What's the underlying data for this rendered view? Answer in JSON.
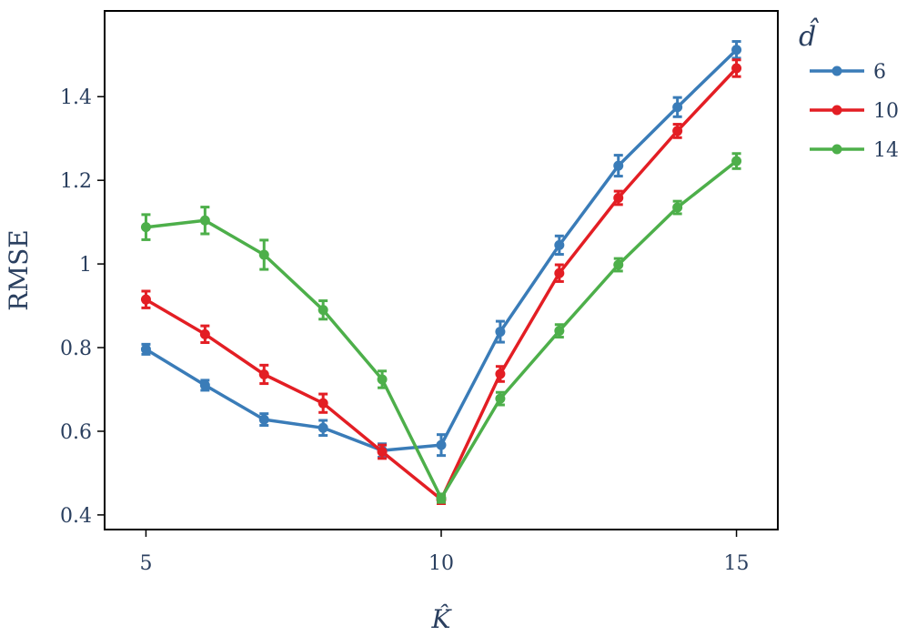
{
  "chart_data": {
    "type": "line",
    "xlabel": "K̂",
    "ylabel": "RMSE",
    "xlim": [
      4.3,
      15.7
    ],
    "ylim": [
      0.365,
      1.605
    ],
    "xticks": [
      5,
      10,
      15
    ],
    "yticks": [
      0.4,
      0.6,
      0.8,
      1.0,
      1.2,
      1.4
    ],
    "ytick_labels": [
      "0.4",
      "0.6",
      "0.8",
      "1",
      "1.2",
      "1.4"
    ],
    "xtick_labels": [
      "5",
      "10",
      "15"
    ],
    "grid": false,
    "legend": {
      "title": "d̂",
      "placement": "right"
    },
    "x": [
      5,
      6,
      7,
      8,
      9,
      10,
      11,
      12,
      13,
      14,
      15
    ],
    "series": [
      {
        "name": "6",
        "color": "#3a7cb8",
        "values": [
          0.796,
          0.71,
          0.628,
          0.608,
          0.554,
          0.567,
          0.838,
          1.045,
          1.235,
          1.375,
          1.512
        ],
        "errors": [
          0.012,
          0.012,
          0.014,
          0.018,
          0.016,
          0.025,
          0.025,
          0.022,
          0.025,
          0.023,
          0.02
        ]
      },
      {
        "name": "10",
        "color": "#e31e24",
        "values": [
          0.915,
          0.832,
          0.736,
          0.667,
          0.551,
          0.437,
          0.737,
          0.978,
          1.158,
          1.318,
          1.468
        ],
        "errors": [
          0.02,
          0.02,
          0.022,
          0.022,
          0.016,
          0.01,
          0.018,
          0.02,
          0.016,
          0.016,
          0.02
        ]
      },
      {
        "name": "14",
        "color": "#4daf4a",
        "values": [
          1.088,
          1.104,
          1.022,
          0.89,
          0.724,
          0.44,
          0.678,
          0.84,
          0.998,
          1.135,
          1.246
        ],
        "errors": [
          0.03,
          0.032,
          0.035,
          0.022,
          0.02,
          0.01,
          0.015,
          0.015,
          0.015,
          0.015,
          0.018
        ]
      }
    ]
  }
}
